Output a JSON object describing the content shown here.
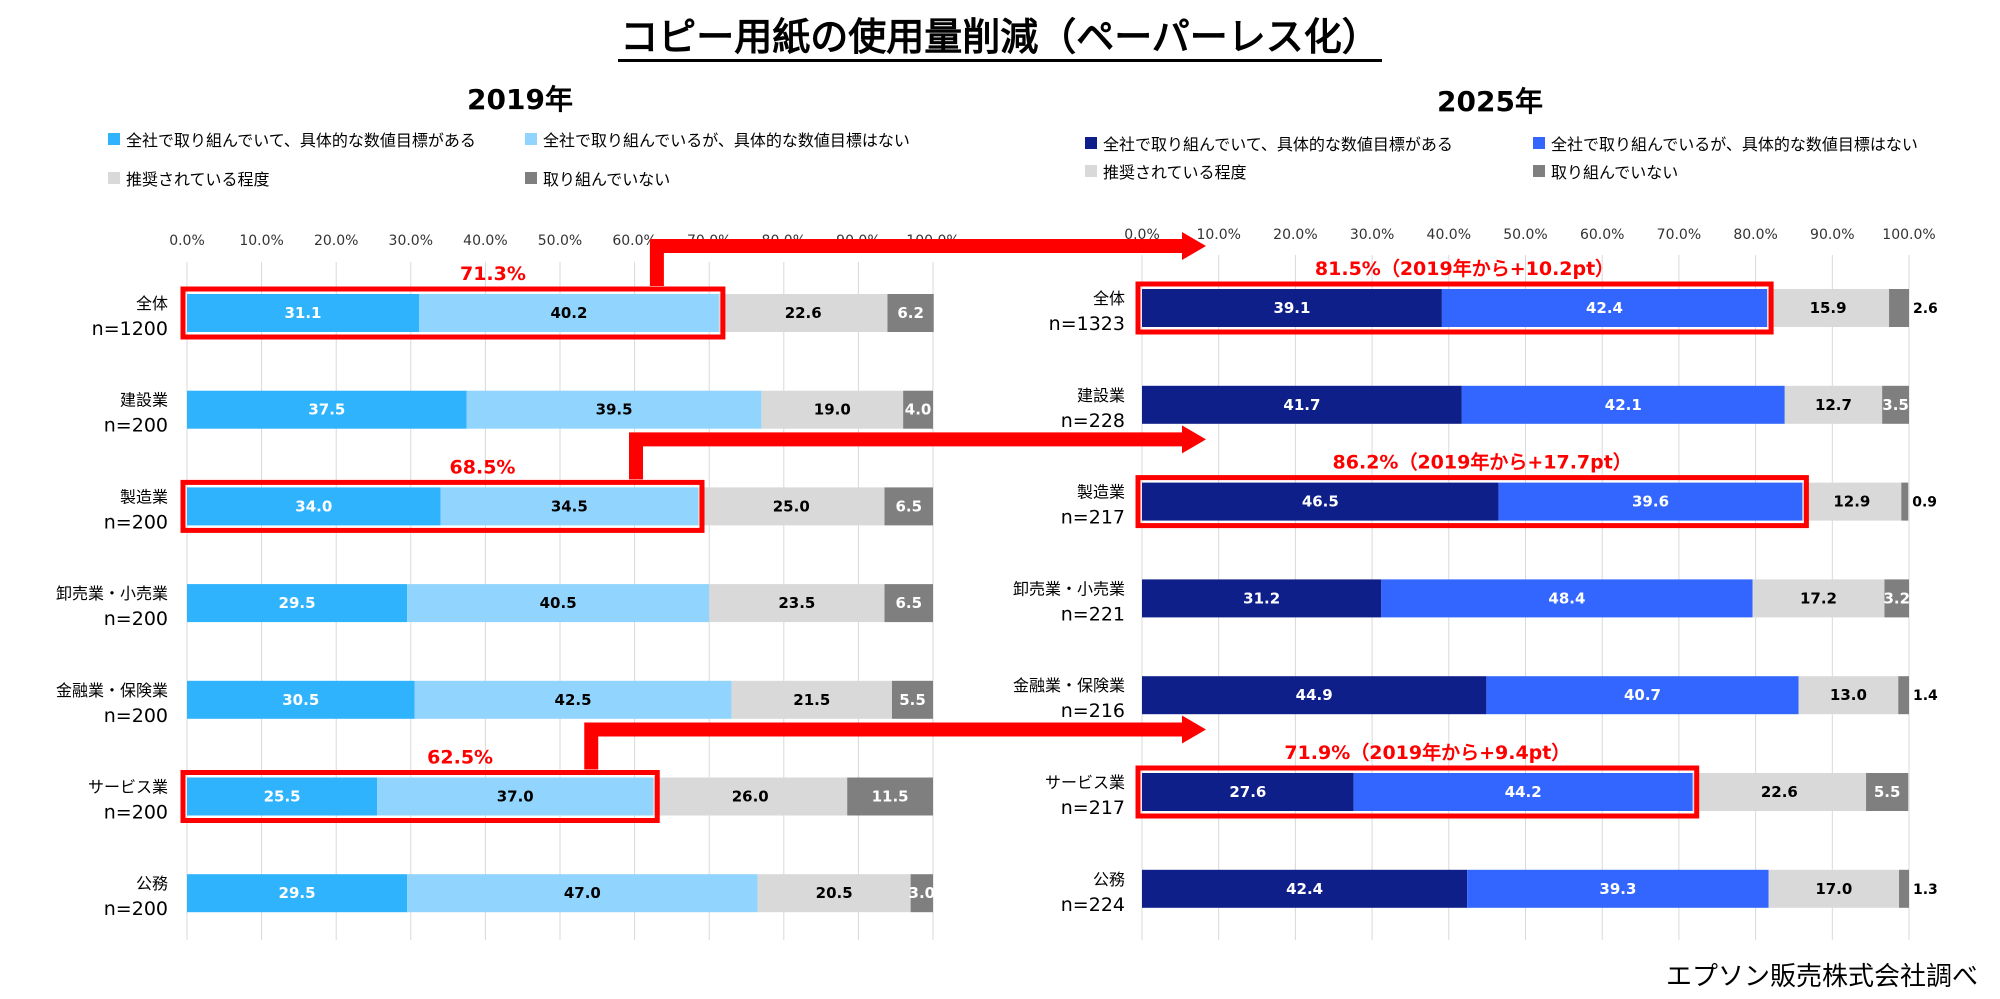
{
  "title": "コピー用紙の使用量削減（ペーパーレス化）",
  "footer": "エプソン販売株式会社調べ",
  "colors": {
    "annotation": "#ff0000",
    "grid": "#d9d9d9"
  },
  "chart_data": [
    {
      "type": "bar",
      "orientation": "horizontal-stacked-100",
      "title": "2019年",
      "xlim": [
        0,
        100
      ],
      "grid": true,
      "legend_position": "top",
      "tick_labels": [
        "0.0%",
        "10.0%",
        "20.0%",
        "30.0%",
        "40.0%",
        "50.0%",
        "60.0%",
        "70.0%",
        "80.0%",
        "90.0%",
        "100.0%"
      ],
      "categories": [
        "全体",
        "建設業",
        "製造業",
        "卸売業・小売業",
        "金融業・保険業",
        "サービス業",
        "公務"
      ],
      "sample_sizes": [
        "n=1200",
        "n=200",
        "n=200",
        "n=200",
        "n=200",
        "n=200",
        "n=200"
      ],
      "series": [
        {
          "name": "全社で取り組んでいて、具体的な数値目標がある",
          "color": "#2fb3fd",
          "label_color": "#ffffff",
          "values": [
            31.1,
            37.5,
            34.0,
            29.5,
            30.5,
            25.5,
            29.5
          ]
        },
        {
          "name": "全社で取り組んでいるが、具体的な数値目標はない",
          "color": "#91d5fe",
          "label_color": "#000000",
          "values": [
            40.2,
            39.5,
            34.5,
            40.5,
            42.5,
            37.0,
            47.0
          ]
        },
        {
          "name": "推奨されている程度",
          "color": "#d9d9d9",
          "label_color": "#000000",
          "values": [
            22.6,
            19.0,
            25.0,
            23.5,
            21.5,
            26.0,
            20.5
          ]
        },
        {
          "name": "取り組んでいない",
          "color": "#7f7f7f",
          "label_color": "#ffffff",
          "values": [
            6.2,
            4.0,
            6.5,
            6.5,
            5.5,
            11.5,
            3.0
          ]
        }
      ],
      "highlights": [
        {
          "row": 0,
          "label": "71.3%"
        },
        {
          "row": 2,
          "label": "68.5%"
        },
        {
          "row": 5,
          "label": "62.5%"
        }
      ]
    },
    {
      "type": "bar",
      "orientation": "horizontal-stacked-100",
      "title": "2025年",
      "xlim": [
        0,
        100
      ],
      "grid": true,
      "legend_position": "top",
      "tick_labels": [
        "0.0%",
        "10.0%",
        "20.0%",
        "30.0%",
        "40.0%",
        "50.0%",
        "60.0%",
        "70.0%",
        "80.0%",
        "90.0%",
        "100.0%"
      ],
      "categories": [
        "全体",
        "建設業",
        "製造業",
        "卸売業・小売業",
        "金融業・保険業",
        "サービス業",
        "公務"
      ],
      "sample_sizes": [
        "n=1323",
        "n=228",
        "n=217",
        "n=221",
        "n=216",
        "n=217",
        "n=224"
      ],
      "series": [
        {
          "name": "全社で取り組んでいて、具体的な数値目標がある",
          "color": "#0f1f8a",
          "label_color": "#ffffff",
          "values": [
            39.1,
            41.7,
            46.5,
            31.2,
            44.9,
            27.6,
            42.4
          ]
        },
        {
          "name": "全社で取り組んでいるが、具体的な数値目標はない",
          "color": "#3366ff",
          "label_color": "#ffffff",
          "values": [
            42.4,
            42.1,
            39.6,
            48.4,
            40.7,
            44.2,
            39.3
          ]
        },
        {
          "name": "推奨されている程度",
          "color": "#d9d9d9",
          "label_color": "#000000",
          "values": [
            15.9,
            12.7,
            12.9,
            17.2,
            13.0,
            22.6,
            17.0
          ]
        },
        {
          "name": "取り組んでいない",
          "color": "#7f7f7f",
          "label_color": "#ffffff",
          "values": [
            2.6,
            3.5,
            0.9,
            3.2,
            1.4,
            5.5,
            1.3
          ]
        }
      ],
      "outside_labels_rows": [
        0,
        2,
        4,
        6
      ],
      "highlights": [
        {
          "row": 0,
          "label": "81.5%（2019年から+10.2pt）"
        },
        {
          "row": 2,
          "label": "86.2%（2019年から+17.7pt）"
        },
        {
          "row": 5,
          "label": "71.9%（2019年から+9.4pt）"
        }
      ]
    }
  ]
}
